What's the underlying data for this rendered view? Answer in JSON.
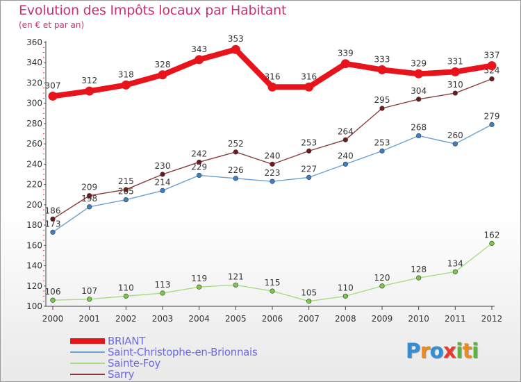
{
  "title": "Evolution des Impôts locaux par Habitant",
  "subtitle": "(en € et par an)",
  "logo": {
    "text": "Proxiti"
  },
  "chart_data": {
    "type": "line",
    "title": "Evolution des Impôts locaux par Habitant",
    "subtitle": "(en € et par an)",
    "xlabel": "",
    "ylabel": "",
    "x": [
      2000,
      2001,
      2002,
      2003,
      2004,
      2005,
      2006,
      2007,
      2008,
      2009,
      2010,
      2011,
      2012
    ],
    "ylim": [
      100,
      360
    ],
    "yticks": [
      100,
      120,
      140,
      160,
      180,
      200,
      220,
      240,
      260,
      280,
      300,
      320,
      340,
      360
    ],
    "grid": false,
    "legend_position": "bottom-left",
    "series": [
      {
        "name": "BRIANT",
        "color": "#e8141c",
        "marker": "#e8141c",
        "values": [
          307,
          312,
          318,
          328,
          343,
          353,
          316,
          316,
          339,
          333,
          329,
          331,
          337
        ]
      },
      {
        "name": "Saint-Christophe-en-Brionnais",
        "color": "#6aa0d4",
        "marker": "#3f7fc4",
        "values": [
          173,
          198,
          205,
          214,
          229,
          226,
          223,
          227,
          240,
          253,
          268,
          260,
          279
        ]
      },
      {
        "name": "Sainte-Foy",
        "color": "#a6dc82",
        "marker": "#7cc84c",
        "values": [
          106,
          107,
          110,
          113,
          119,
          121,
          115,
          105,
          110,
          120,
          128,
          134,
          162
        ]
      },
      {
        "name": "Sarry",
        "color": "#8a3a3a",
        "marker": "#6e1a1a",
        "values": [
          186,
          209,
          215,
          230,
          242,
          252,
          240,
          253,
          264,
          295,
          304,
          310,
          324
        ]
      }
    ]
  }
}
